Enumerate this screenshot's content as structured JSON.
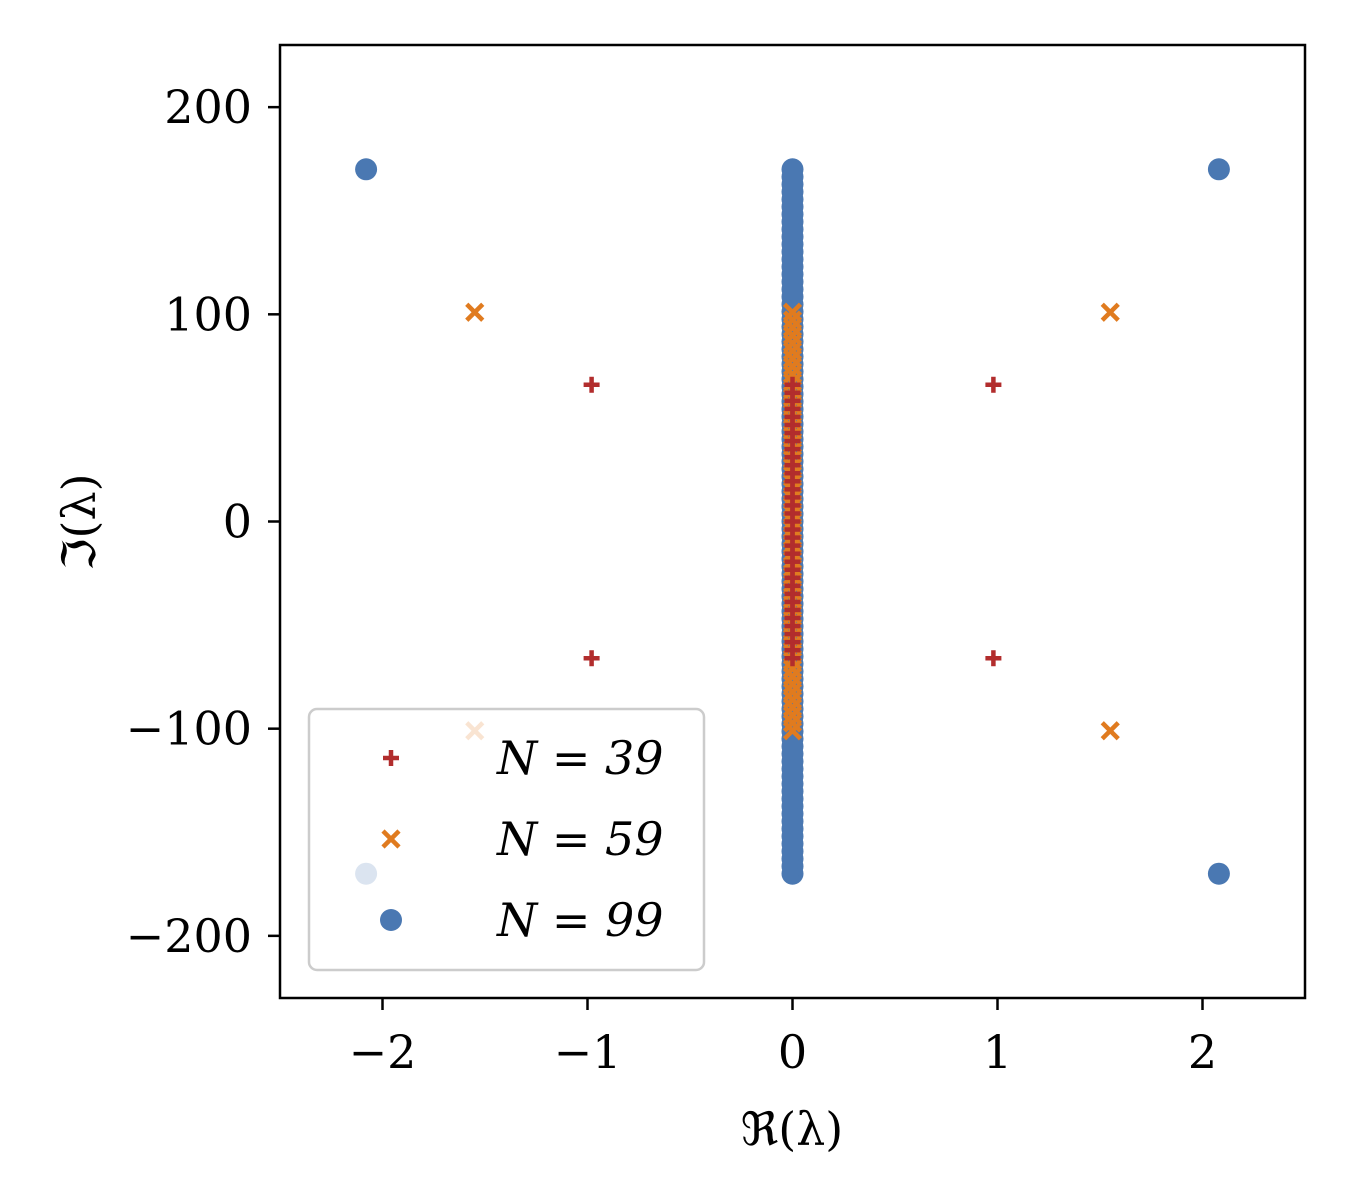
{
  "chart_data": {
    "type": "scatter",
    "xlabel": "ℜ(λ)",
    "ylabel": "ℑ(λ)",
    "xlim": [
      -2.5,
      2.5
    ],
    "ylim": [
      -230,
      230
    ],
    "xticks": [
      -2,
      -1,
      0,
      1,
      2
    ],
    "xtick_labels": [
      "−2",
      "−1",
      "0",
      "1",
      "2"
    ],
    "yticks": [
      200,
      100,
      0,
      -100,
      -200
    ],
    "ytick_labels": [
      "200",
      "100",
      "0",
      "−100",
      "−200"
    ],
    "grid": false,
    "legend_position": "lower-left",
    "series": [
      {
        "name": "N = 39",
        "marker": "plus",
        "color": "#b22d2d",
        "outer_points": [
          [
            -0.98,
            66
          ],
          [
            0.98,
            66
          ],
          [
            -0.98,
            -66
          ],
          [
            0.98,
            -66
          ]
        ],
        "axis_segment": {
          "x": 0,
          "y_min": -66,
          "y_max": 66,
          "count": 35
        }
      },
      {
        "name": "N = 59",
        "marker": "x",
        "color": "#e07b1f",
        "outer_points": [
          [
            -1.55,
            101
          ],
          [
            1.55,
            101
          ],
          [
            -1.55,
            -101
          ],
          [
            1.55,
            -101
          ]
        ],
        "axis_segment": {
          "x": 0,
          "y_min": -101,
          "y_max": 101,
          "count": 55
        }
      },
      {
        "name": "N = 99",
        "marker": "circle",
        "color": "#4a78b2",
        "outer_points": [
          [
            -2.08,
            170
          ],
          [
            2.08,
            170
          ],
          [
            -2.08,
            -170
          ],
          [
            2.08,
            -170
          ]
        ],
        "axis_segment": {
          "x": 0,
          "y_min": -170,
          "y_max": 170,
          "count": 95
        }
      }
    ],
    "legend": [
      {
        "label": "N = 39",
        "marker": "plus",
        "color": "#b22d2d"
      },
      {
        "label": "N = 59",
        "marker": "x",
        "color": "#e07b1f"
      },
      {
        "label": "N = 99",
        "marker": "circle",
        "color": "#4a78b2"
      }
    ]
  }
}
